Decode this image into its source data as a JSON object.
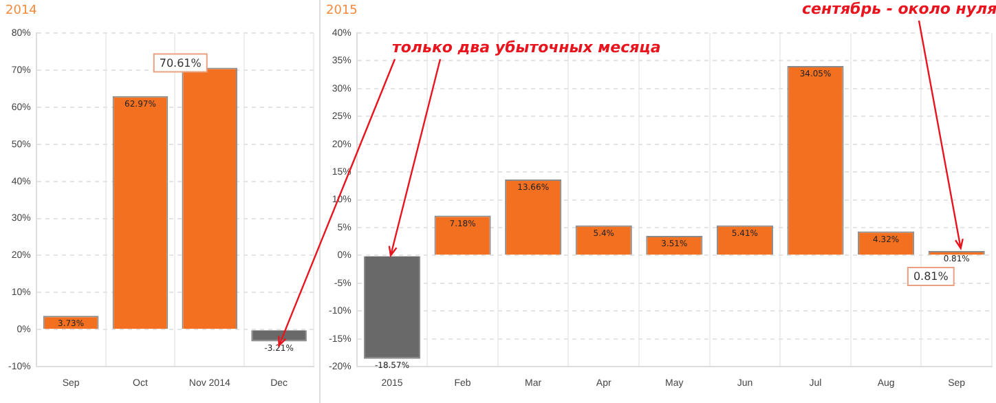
{
  "chart_data": [
    {
      "type": "bar",
      "title": "2014",
      "categories": [
        "Sep",
        "Oct",
        "Nov 2014",
        "Dec"
      ],
      "values": [
        3.73,
        62.97,
        70.61,
        -3.21
      ],
      "colors": [
        "#f37021",
        "#f37021",
        "#f37021",
        "#696969"
      ],
      "value_labels": [
        "3.73%",
        "62.97%",
        null,
        "-3.21%"
      ],
      "ylim": [
        -10,
        80
      ],
      "yticks": [
        {
          "value": -10,
          "label": "-10%"
        },
        {
          "value": 0,
          "label": "0%"
        },
        {
          "value": 10,
          "label": "10%"
        },
        {
          "value": 20,
          "label": "20%"
        },
        {
          "value": 30,
          "label": "30%"
        },
        {
          "value": 40,
          "label": "40%"
        },
        {
          "value": 50,
          "label": "50%"
        },
        {
          "value": 60,
          "label": "60%"
        },
        {
          "value": 70,
          "label": "70%"
        },
        {
          "value": 80,
          "label": "80%"
        }
      ],
      "annotations": [
        {
          "text": "70.61%",
          "x": "Nov 2014",
          "y": 70.61
        }
      ],
      "grid": true,
      "legend": false
    },
    {
      "type": "bar",
      "title": "2015",
      "categories": [
        "2015",
        "Feb",
        "Mar",
        "Apr",
        "May",
        "Jun",
        "Jul",
        "Aug",
        "Sep"
      ],
      "values": [
        -18.57,
        7.18,
        13.66,
        5.4,
        3.51,
        5.41,
        34.05,
        4.32,
        0.81
      ],
      "colors": [
        "#696969",
        "#f37021",
        "#f37021",
        "#f37021",
        "#f37021",
        "#f37021",
        "#f37021",
        "#f37021",
        "#f37021"
      ],
      "value_labels": [
        "-18.57%",
        "7.18%",
        "13.66%",
        "5.4%",
        "3.51%",
        "5.41%",
        "34.05%",
        "4.32%",
        "0.81%"
      ],
      "ylim": [
        -20,
        40
      ],
      "yticks": [
        {
          "value": -20,
          "label": "-20%"
        },
        {
          "value": -15,
          "label": "-15%"
        },
        {
          "value": -10,
          "label": "-10%"
        },
        {
          "value": -5,
          "label": "-5%"
        },
        {
          "value": 0,
          "label": "0%"
        },
        {
          "value": 5,
          "label": "5%"
        },
        {
          "value": 10,
          "label": "10%"
        },
        {
          "value": 15,
          "label": "15%"
        },
        {
          "value": 20,
          "label": "20%"
        },
        {
          "value": 25,
          "label": "25%"
        },
        {
          "value": 30,
          "label": "30%"
        },
        {
          "value": 35,
          "label": "35%"
        },
        {
          "value": 40,
          "label": "40%"
        }
      ],
      "annotations": [
        {
          "text": "только два убыточных месяца",
          "x": "2015",
          "y": 0
        },
        {
          "text": "сентябрь - около нуля",
          "x": "Sep",
          "y": 0.81
        },
        {
          "text": "0.81%",
          "x": "Sep",
          "y": 0.81
        }
      ],
      "grid": true,
      "legend": false
    }
  ]
}
